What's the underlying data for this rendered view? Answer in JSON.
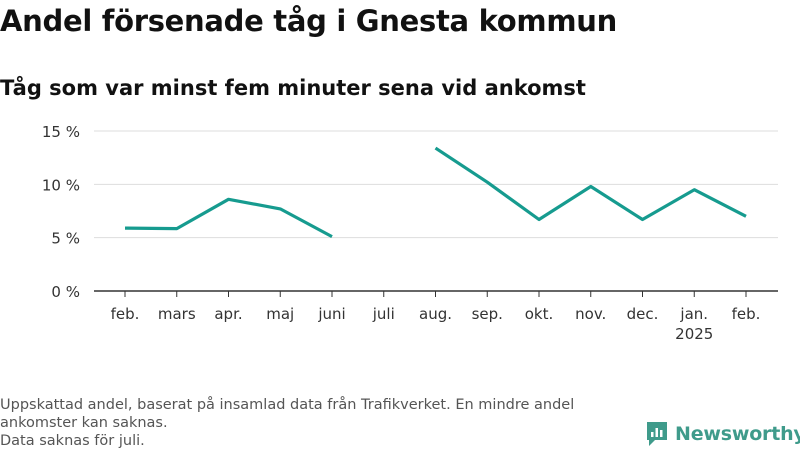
{
  "chart_data": {
    "type": "line",
    "title": "Andel försenade tåg i Gnesta kommun",
    "subtitle": "Tåg som var minst fem minuter sena vid ankomst",
    "categories": [
      "feb.",
      "mars",
      "apr.",
      "maj",
      "juni",
      "juli",
      "aug.",
      "sep.",
      "okt.",
      "nov.",
      "dec.",
      "jan.",
      "feb."
    ],
    "category_sublabels": {
      "11": "2025"
    },
    "series": [
      {
        "values": [
          5.9,
          5.85,
          8.6,
          7.7,
          5.1,
          null,
          13.4,
          10.2,
          6.7,
          9.8,
          6.7,
          9.5,
          7.0
        ],
        "color": "#169b8f"
      }
    ],
    "yticks": [
      "0 %",
      "5 %",
      "10 %",
      "15 %"
    ],
    "ytick_values": [
      0,
      5,
      10,
      15
    ],
    "ylim": [
      0,
      15
    ],
    "grid": true
  },
  "footnote": {
    "line1": "Uppskattad andel, baserat på insamlad data från Trafikverket. En mindre andel ankomster kan saknas.",
    "line2": "Data saknas för juli."
  },
  "brand": {
    "name": "Newsworthy",
    "icon": "newsworthy-logo-icon",
    "color": "#3f9b8b"
  }
}
